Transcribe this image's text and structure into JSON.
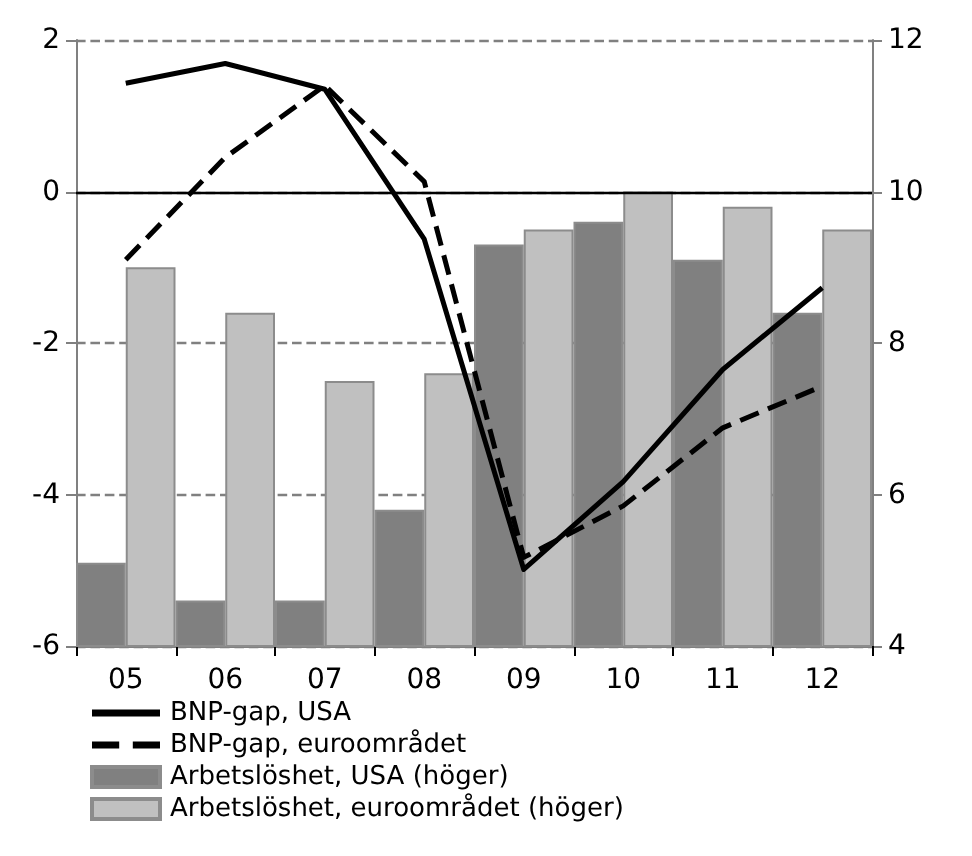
{
  "chart_data": {
    "type": "line",
    "categories": [
      "05",
      "06",
      "07",
      "08",
      "09",
      "10",
      "11",
      "12"
    ],
    "series": [
      {
        "name": "BNP-gap, USA",
        "color": "#000000",
        "line_style": "solid",
        "values": [
          1.43,
          1.69,
          1.35,
          -0.63,
          -4.99,
          -3.83,
          -2.35,
          -1.27
        ]
      },
      {
        "name": "BNP-gap, euroområdet",
        "color": "#000000",
        "line_style": "dashed",
        "values": [
          -0.9,
          0.45,
          1.4,
          0.13,
          -4.83,
          -4.15,
          -3.12,
          -2.57
        ]
      },
      {
        "name": "Arbetslöshet, USA (höger)",
        "type": "bar",
        "axis": "y2",
        "color": "#808080",
        "values": [
          5.1,
          4.6,
          4.6,
          5.8,
          9.3,
          9.6,
          9.1,
          8.4
        ]
      },
      {
        "name": "Arbetslöshet, euroområdet (höger)",
        "type": "bar",
        "axis": "y2",
        "color": "#c0c0c0",
        "values": [
          9.0,
          8.4,
          7.5,
          7.6,
          9.5,
          10.0,
          9.8,
          9.5
        ]
      }
    ],
    "ylim": [
      -6,
      2
    ],
    "yticks": [
      -6,
      -4,
      -2,
      0,
      2
    ],
    "y2lim": [
      4,
      12
    ],
    "y2ticks": [
      4,
      6,
      8,
      10,
      12
    ],
    "ref_lines": [
      {
        "axis": "y",
        "value": 0,
        "color": "#000000",
        "line_style": "solid"
      }
    ],
    "grid": "y",
    "legend": "bottom",
    "marker": "none"
  }
}
